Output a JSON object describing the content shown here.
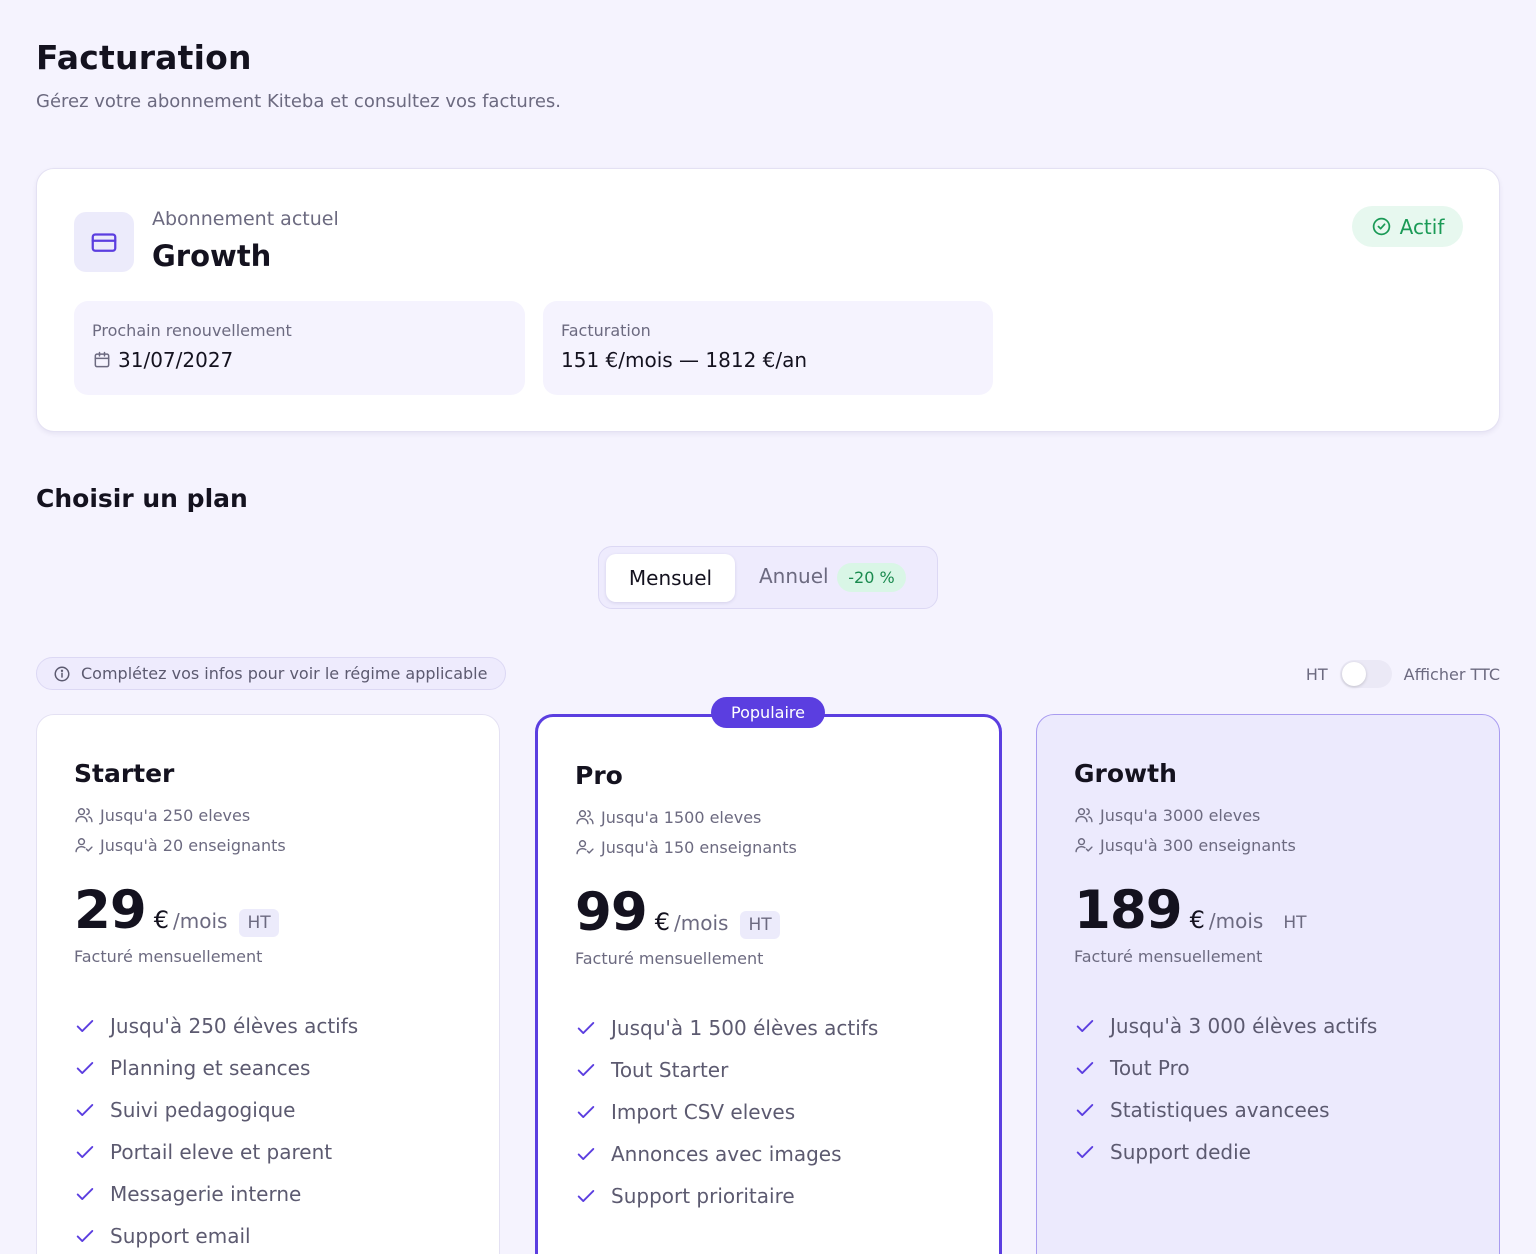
{
  "header": {
    "title": "Facturation",
    "subtitle": "Gérez votre abonnement Kiteba et consultez vos factures."
  },
  "current": {
    "label": "Abonnement actuel",
    "plan": "Growth",
    "status": "Actif",
    "renewal_label": "Prochain renouvellement",
    "renewal_date": "31/07/2027",
    "billing_label": "Facturation",
    "billing_value": "151 €/mois — 1812 €/an"
  },
  "plans_section": {
    "title": "Choisir un plan",
    "monthly_label": "Mensuel",
    "yearly_label": "Annuel",
    "yearly_discount": "-20 %",
    "notice": "Complétez vos infos pour voir le régime applicable",
    "ht_label": "HT",
    "ttc_label": "Afficher TTC",
    "popular_badge": "Populaire"
  },
  "plans": [
    {
      "name": "Starter",
      "students": "Jusqu'a 250 eleves",
      "teachers": "Jusqu'à 20 enseignants",
      "price": "29",
      "currency": "€",
      "period": "/mois",
      "tax": "HT",
      "billed": "Facturé mensuellement",
      "features": [
        "Jusqu'à 250 élèves actifs",
        "Planning et seances",
        "Suivi pedagogique",
        "Portail eleve et parent",
        "Messagerie interne",
        "Support email"
      ]
    },
    {
      "name": "Pro",
      "students": "Jusqu'a 1500 eleves",
      "teachers": "Jusqu'à 150 enseignants",
      "price": "99",
      "currency": "€",
      "period": "/mois",
      "tax": "HT",
      "billed": "Facturé mensuellement",
      "features": [
        "Jusqu'à 1 500 élèves actifs",
        "Tout Starter",
        "Import CSV eleves",
        "Annonces avec images",
        "Support prioritaire"
      ]
    },
    {
      "name": "Growth",
      "students": "Jusqu'a 3000 eleves",
      "teachers": "Jusqu'à 300 enseignants",
      "price": "189",
      "currency": "€",
      "period": "/mois",
      "tax": "HT",
      "billed": "Facturé mensuellement",
      "features": [
        "Jusqu'à 3 000 élèves actifs",
        "Tout Pro",
        "Statistiques avancees",
        "Support dedie"
      ]
    }
  ],
  "colors": {
    "accent": "#5b3ee0",
    "success": "#1a9a56",
    "background": "#f5f3fe"
  }
}
